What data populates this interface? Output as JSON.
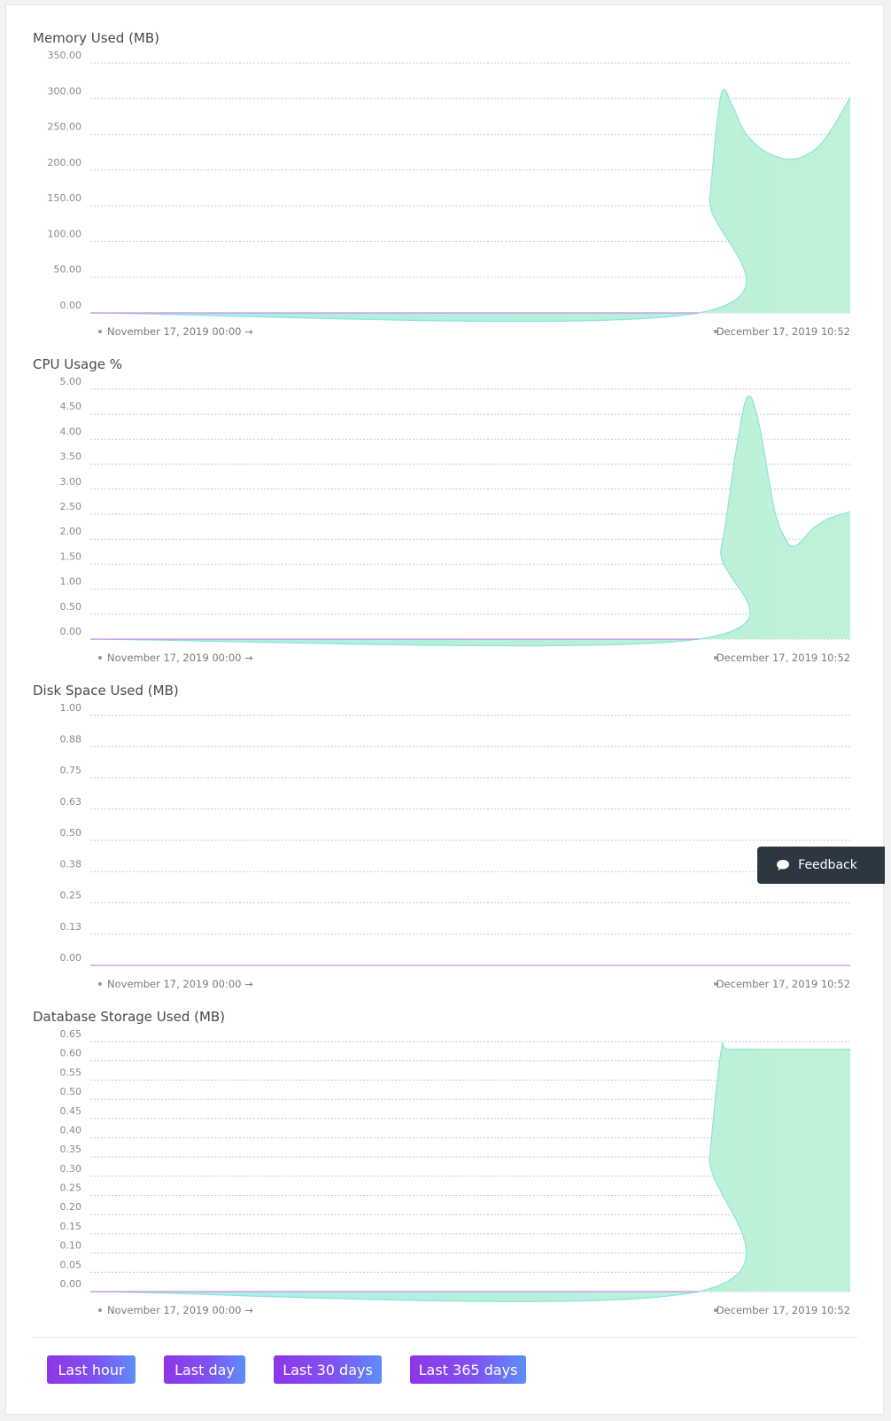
{
  "charts": [
    {
      "title": "Memory Used (MB)",
      "start_label": "November 17, 2019 00:00 →",
      "end_label": "December 17, 2019 10:52"
    },
    {
      "title": "CPU Usage %",
      "start_label": "November 17, 2019 00:00 →",
      "end_label": "December 17, 2019 10:52"
    },
    {
      "title": "Disk Space Used (MB)",
      "start_label": "November 17, 2019 00:00 →",
      "end_label": "December 17, 2019 10:52"
    },
    {
      "title": "Database Storage Used (MB)",
      "start_label": "November 17, 2019 00:00 →",
      "end_label": "December 17, 2019 10:52"
    }
  ],
  "buttons": {
    "last_hour": "Last hour",
    "last_day": "Last day",
    "last_30_days": "Last 30 days",
    "last_365_days": "Last 365 days"
  },
  "feedback": {
    "label": "Feedback",
    "icon": "chat-bubble-icon"
  },
  "colors": {
    "area_start": "#a9ede6",
    "area_end": "#bff2d6",
    "line": "#8ee3dc",
    "baseline": "#c98ee8",
    "grid": "#c8c8c8",
    "button_start": "#8e35e6",
    "button_end": "#5d8ef7",
    "feedback_bg": "#2d3742"
  },
  "chart_data": [
    {
      "type": "area",
      "title": "Memory Used (MB)",
      "ylim": [
        0,
        350
      ],
      "yticks": [
        "0.00",
        "50.00",
        "100.00",
        "150.00",
        "200.00",
        "250.00",
        "300.00",
        "350.00"
      ],
      "x_range": [
        "November 17, 2019 00:00",
        "December 17, 2019 10:52"
      ],
      "x": [
        0,
        0.8,
        0.815,
        0.83,
        0.845,
        0.86,
        0.88,
        0.9,
        0.92,
        0.94,
        0.96,
        0.98,
        1.0
      ],
      "values": [
        0,
        0,
        160,
        305,
        290,
        255,
        232,
        220,
        215,
        220,
        235,
        265,
        302
      ]
    },
    {
      "type": "area",
      "title": "CPU Usage %",
      "ylim": [
        0,
        5
      ],
      "yticks": [
        "0.00",
        "0.50",
        "1.00",
        "1.50",
        "2.00",
        "2.50",
        "3.00",
        "3.50",
        "4.00",
        "4.50",
        "5.00"
      ],
      "x_range": [
        "November 17, 2019 00:00",
        "December 17, 2019 10:52"
      ],
      "x": [
        0,
        0.8,
        0.83,
        0.85,
        0.865,
        0.88,
        0.9,
        0.915,
        0.925,
        0.935,
        0.95,
        0.97,
        1.0
      ],
      "values": [
        0,
        0,
        1.8,
        3.8,
        4.85,
        4.3,
        2.6,
        2.0,
        1.85,
        1.95,
        2.2,
        2.4,
        2.55
      ]
    },
    {
      "type": "area",
      "title": "Disk Space Used (MB)",
      "ylim": [
        0,
        1
      ],
      "yticks": [
        "0.00",
        "0.13",
        "0.25",
        "0.38",
        "0.50",
        "0.63",
        "0.75",
        "0.88",
        "1.00"
      ],
      "x_range": [
        "November 17, 2019 00:00",
        "December 17, 2019 10:52"
      ],
      "x": [
        0,
        1.0
      ],
      "values": [
        0,
        0
      ]
    },
    {
      "type": "area",
      "title": "Database Storage Used (MB)",
      "ylim": [
        0,
        0.65
      ],
      "yticks": [
        "0.00",
        "0.05",
        "0.10",
        "0.15",
        "0.20",
        "0.25",
        "0.30",
        "0.35",
        "0.40",
        "0.45",
        "0.50",
        "0.55",
        "0.60",
        "0.65"
      ],
      "x_range": [
        "November 17, 2019 00:00",
        "December 17, 2019 10:52"
      ],
      "x": [
        0,
        0.8,
        0.815,
        0.83,
        0.84,
        0.9,
        1.0
      ],
      "values": [
        0,
        0,
        0.35,
        0.625,
        0.63,
        0.63,
        0.63
      ]
    }
  ]
}
